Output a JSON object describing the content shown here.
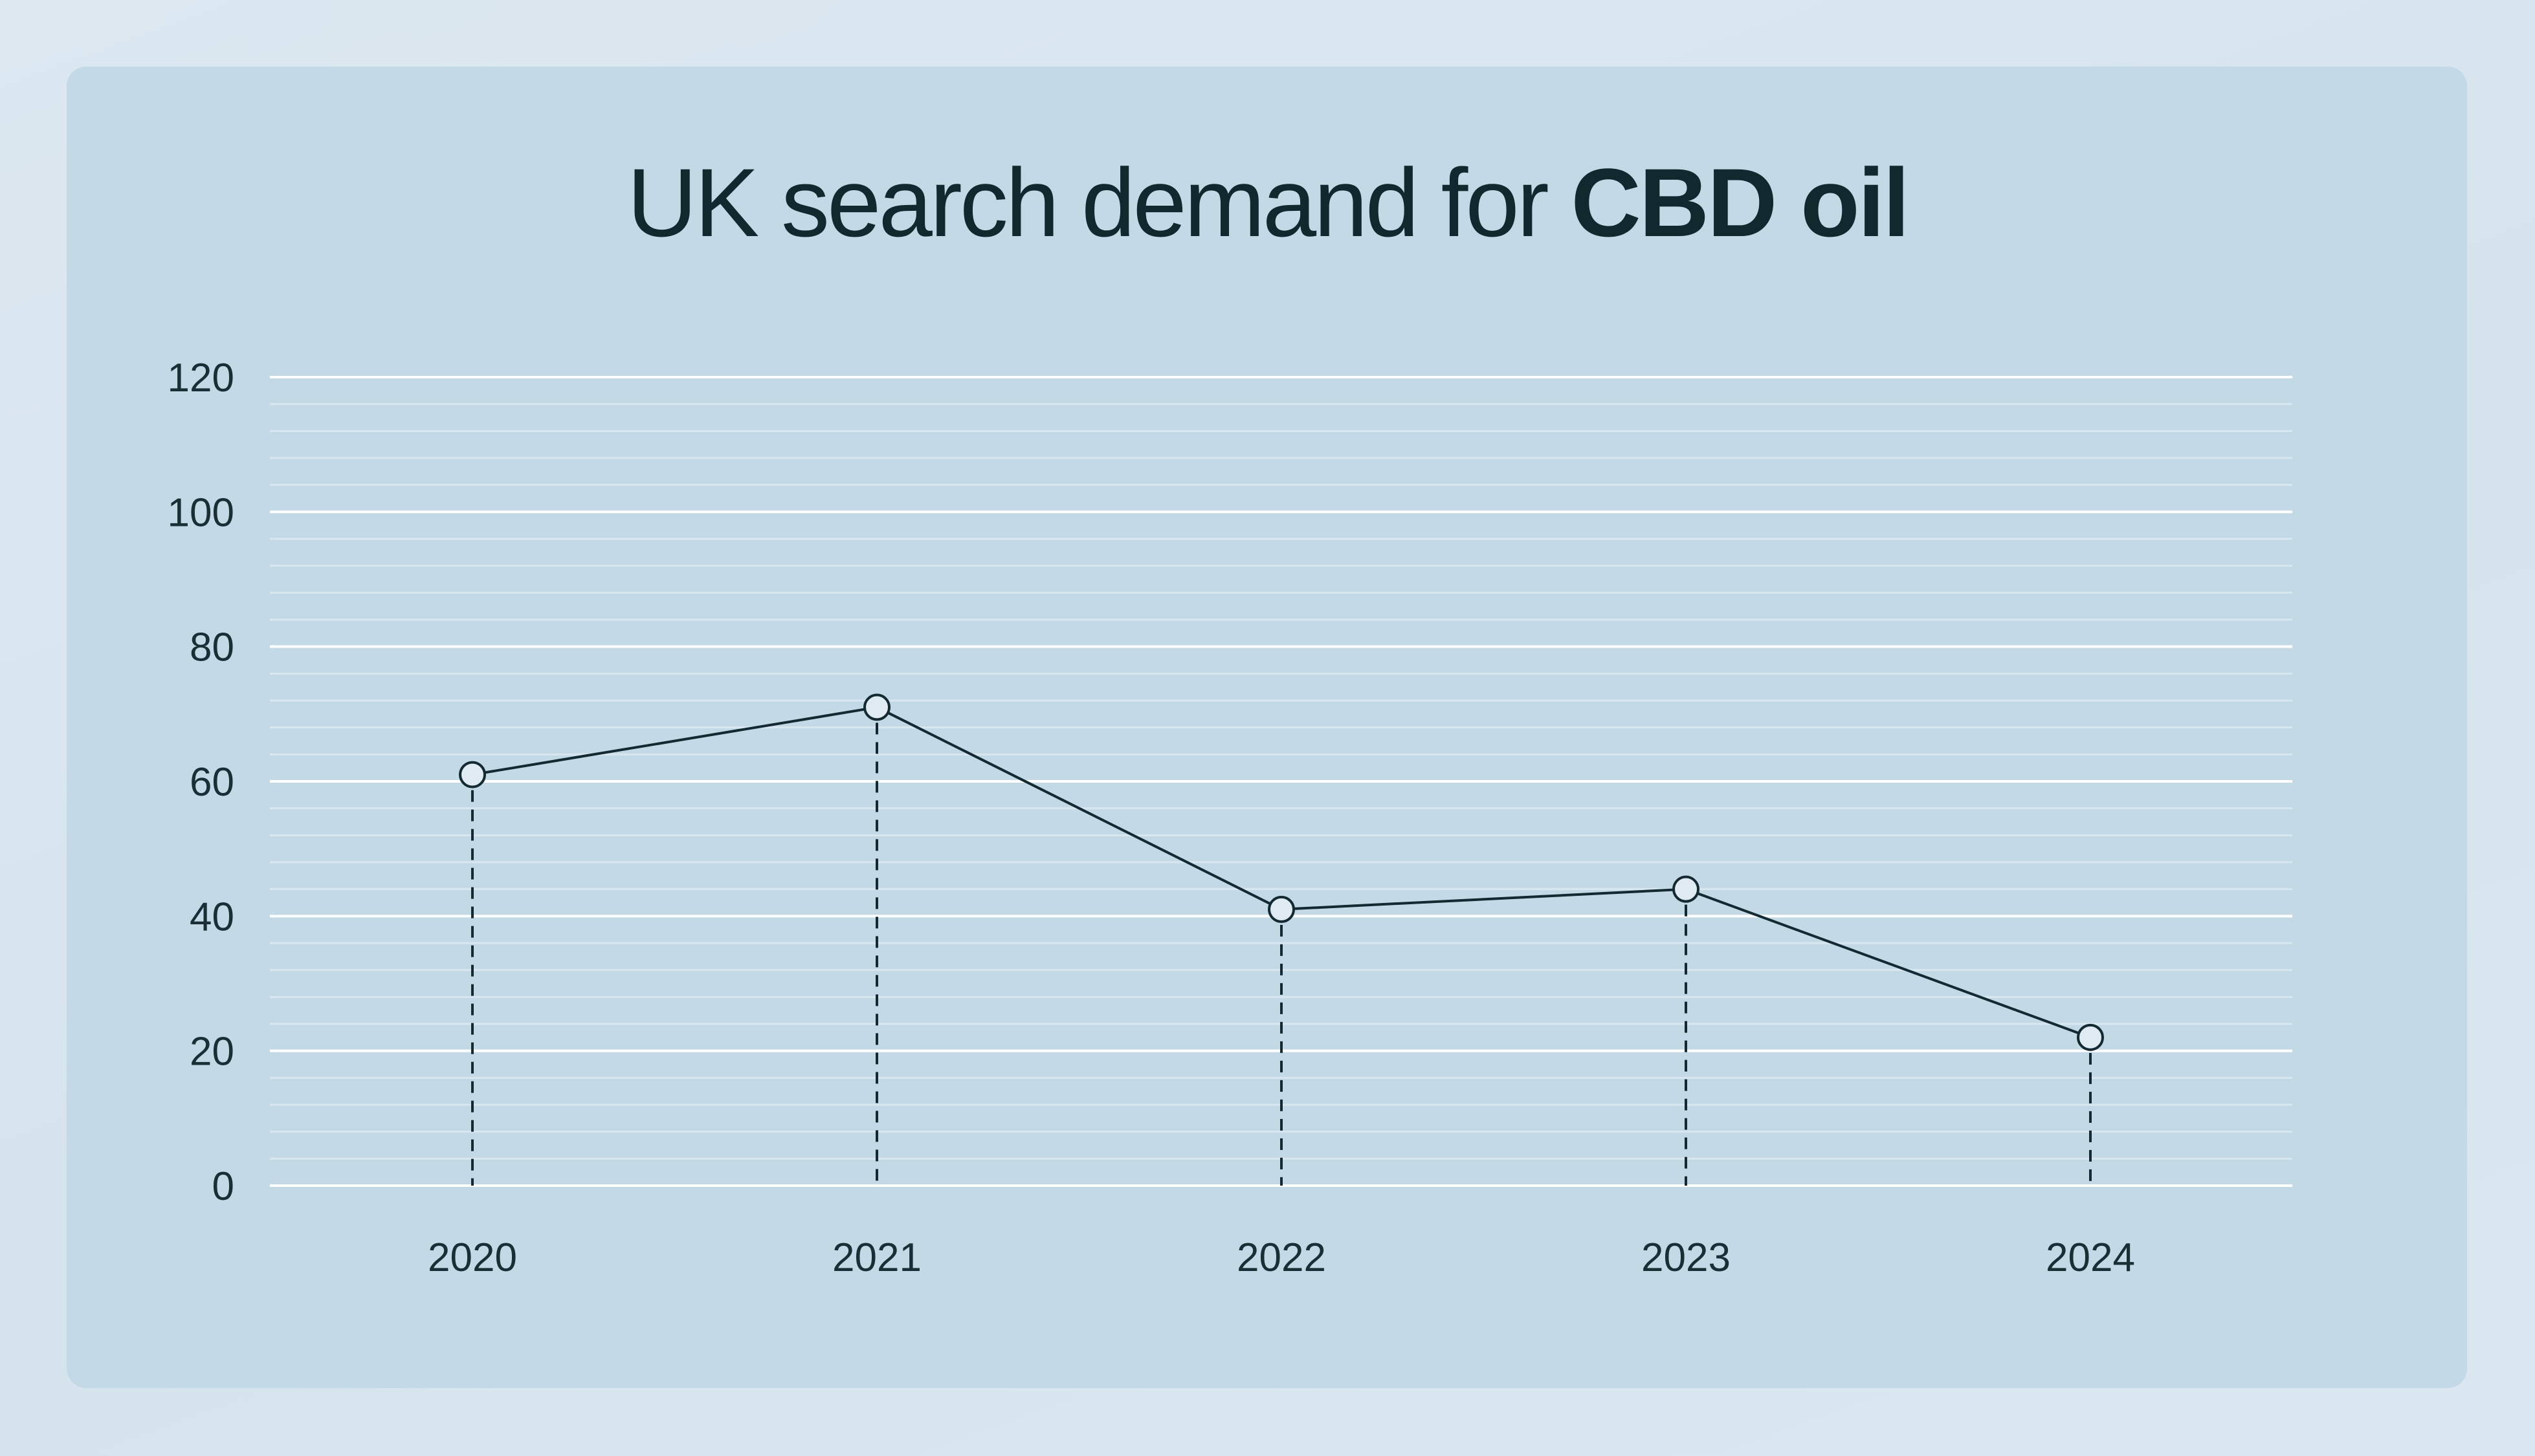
{
  "chart_data": {
    "type": "line",
    "title_prefix": "UK search demand for ",
    "title_emphasis": "CBD oil",
    "x": [
      "2020",
      "2021",
      "2022",
      "2023",
      "2024"
    ],
    "values": [
      61,
      71,
      41,
      44,
      22
    ],
    "xlabel": "",
    "ylabel": "",
    "ylim": [
      0,
      120
    ],
    "yticks": [
      "0",
      "20",
      "40",
      "60",
      "80",
      "100",
      "120"
    ],
    "grid": true,
    "drop_lines": true,
    "colors": {
      "line": "#132a32",
      "marker_fill": "#dfeaf2",
      "grid_major": "#ffffff",
      "grid_minor": "#d9e7f0",
      "text": "#1a2e36"
    }
  }
}
